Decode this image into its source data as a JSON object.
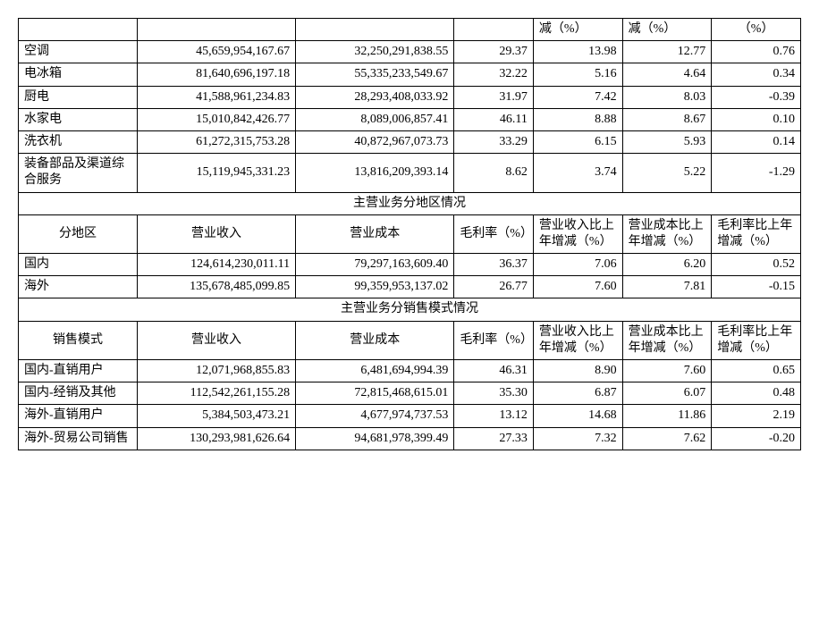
{
  "topHeader": {
    "c5": "减（%）",
    "c6": "减（%）",
    "c7": "（%）"
  },
  "products": [
    {
      "name": "空调",
      "rev": "45,659,954,167.67",
      "cost": "32,250,291,838.55",
      "margin": "29.37",
      "rev_chg": "13.98",
      "cost_chg": "12.77",
      "margin_chg": "0.76"
    },
    {
      "name": "电冰箱",
      "rev": "81,640,696,197.18",
      "cost": "55,335,233,549.67",
      "margin": "32.22",
      "rev_chg": "5.16",
      "cost_chg": "4.64",
      "margin_chg": "0.34"
    },
    {
      "name": "厨电",
      "rev": "41,588,961,234.83",
      "cost": "28,293,408,033.92",
      "margin": "31.97",
      "rev_chg": "7.42",
      "cost_chg": "8.03",
      "margin_chg": "-0.39"
    },
    {
      "name": "水家电",
      "rev": "15,010,842,426.77",
      "cost": "8,089,006,857.41",
      "margin": "46.11",
      "rev_chg": "8.88",
      "cost_chg": "8.67",
      "margin_chg": "0.10"
    },
    {
      "name": "洗衣机",
      "rev": "61,272,315,753.28",
      "cost": "40,872,967,073.73",
      "margin": "33.29",
      "rev_chg": "6.15",
      "cost_chg": "5.93",
      "margin_chg": "0.14"
    },
    {
      "name": "装备部品及渠道综合服务",
      "rev": "15,119,945,331.23",
      "cost": "13,816,209,393.14",
      "margin": "8.62",
      "rev_chg": "3.74",
      "cost_chg": "5.22",
      "margin_chg": "-1.29"
    }
  ],
  "regionSection": {
    "title": "主营业务分地区情况",
    "headers": {
      "c1": "分地区",
      "c2": "营业收入",
      "c3": "营业成本",
      "c4": "毛利率（%）",
      "c5": "营业收入比上年增减（%）",
      "c6": "营业成本比上年增减（%）",
      "c7": "毛利率比上年增减（%）"
    },
    "rows": [
      {
        "name": "国内",
        "rev": "124,614,230,011.11",
        "cost": "79,297,163,609.40",
        "margin": "36.37",
        "rev_chg": "7.06",
        "cost_chg": "6.20",
        "margin_chg": "0.52"
      },
      {
        "name": "海外",
        "rev": "135,678,485,099.85",
        "cost": "99,359,953,137.02",
        "margin": "26.77",
        "rev_chg": "7.60",
        "cost_chg": "7.81",
        "margin_chg": "-0.15"
      }
    ]
  },
  "salesSection": {
    "title": "主营业务分销售模式情况",
    "headers": {
      "c1": "销售模式",
      "c2": "营业收入",
      "c3": "营业成本",
      "c4": "毛利率（%）",
      "c5": "营业收入比上年增减（%）",
      "c6": "营业成本比上年增减（%）",
      "c7": "毛利率比上年增减（%）"
    },
    "rows": [
      {
        "name": "国内-直销用户",
        "rev": "12,071,968,855.83",
        "cost": "6,481,694,994.39",
        "margin": "46.31",
        "rev_chg": "8.90",
        "cost_chg": "7.60",
        "margin_chg": "0.65"
      },
      {
        "name": "国内-经销及其他",
        "rev": "112,542,261,155.28",
        "cost": "72,815,468,615.01",
        "margin": "35.30",
        "rev_chg": "6.87",
        "cost_chg": "6.07",
        "margin_chg": "0.48"
      },
      {
        "name": "海外-直销用户",
        "rev": "5,384,503,473.21",
        "cost": "4,677,974,737.53",
        "margin": "13.12",
        "rev_chg": "14.68",
        "cost_chg": "11.86",
        "margin_chg": "2.19"
      },
      {
        "name": "海外-贸易公司销售",
        "rev": "130,293,981,626.64",
        "cost": "94,681,978,399.49",
        "margin": "27.33",
        "rev_chg": "7.32",
        "cost_chg": "7.62",
        "margin_chg": "-0.20"
      }
    ]
  }
}
